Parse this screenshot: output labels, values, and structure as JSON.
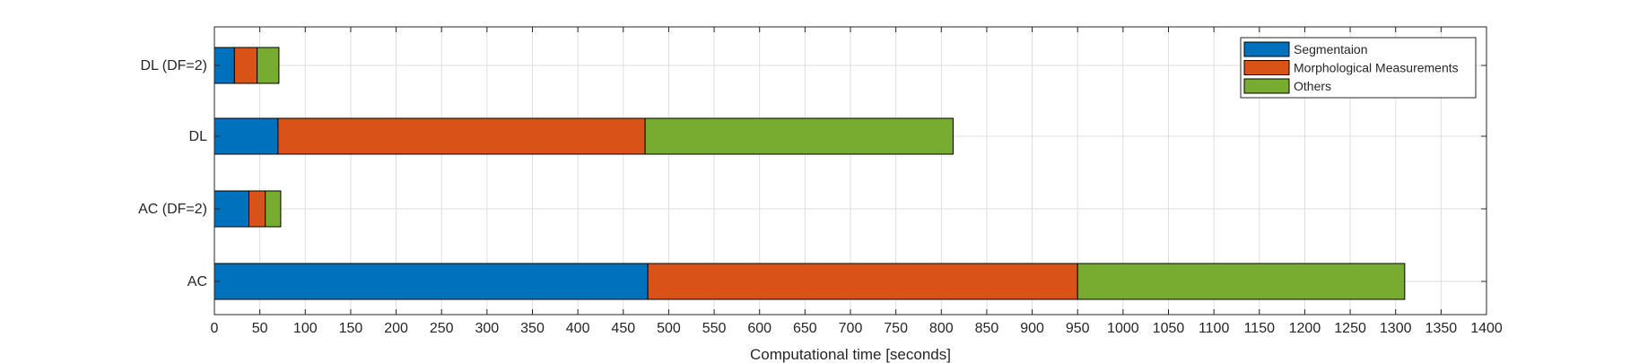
{
  "chart_data": {
    "type": "bar",
    "orientation": "horizontal",
    "stacked": true,
    "categories": [
      "AC",
      "AC (DF=2)",
      "DL",
      "DL (DF=2)"
    ],
    "series": [
      {
        "name": "Segmentaion",
        "values": [
          477,
          38,
          70,
          22
        ],
        "color": "#0072BD"
      },
      {
        "name": "Morphological Measurements",
        "values": [
          473,
          18,
          404,
          25
        ],
        "color": "#D95319"
      },
      {
        "name": "Others",
        "values": [
          360,
          17,
          339,
          24
        ],
        "color": "#77AC30"
      }
    ],
    "title": "",
    "xlabel": "Computational time [seconds]",
    "ylabel": "",
    "xlim": [
      0,
      1400
    ],
    "xticks": [
      0,
      50,
      100,
      150,
      200,
      250,
      300,
      350,
      400,
      450,
      500,
      550,
      600,
      650,
      700,
      750,
      800,
      850,
      900,
      950,
      1000,
      1050,
      1100,
      1150,
      1200,
      1250,
      1300,
      1350,
      1400
    ],
    "grid": true,
    "legend": {
      "placement": "top-right",
      "entries": [
        "Segmentaion",
        "Morphological Measurements",
        "Others"
      ]
    }
  }
}
